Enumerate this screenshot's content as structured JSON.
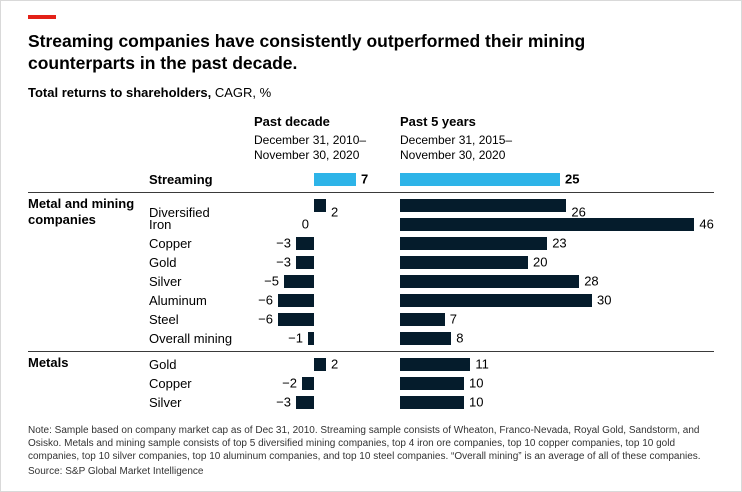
{
  "colors": {
    "accent": "#e32118",
    "highlight": "#2eb4e8",
    "bar": "#051c2c",
    "rule": "#3a3a3a"
  },
  "chart_data": {
    "type": "bar",
    "title": "Streaming companies have consistently outperformed their mining counterparts in the past decade.",
    "subtitle_bold": "Total returns to shareholders,",
    "subtitle_rest": " CAGR, %",
    "columns": [
      {
        "label": "Past decade",
        "sublabel": "December 31, 2010–\nNovember 30, 2020"
      },
      {
        "label": "Past 5 years",
        "sublabel": "December 31, 2015–\nNovember 30, 2020"
      }
    ],
    "series_names": [
      "Past decade",
      "Past 5 years"
    ],
    "groups": [
      {
        "label": "",
        "rows": [
          {
            "name": "Streaming",
            "bold": true,
            "highlight": true,
            "past_decade": 7,
            "past_5_years": 25
          }
        ]
      },
      {
        "label": "Metal and mining companies",
        "rows": [
          {
            "name": "Diversified",
            "past_decade": 2,
            "past_5_years": 26
          },
          {
            "name": "Iron",
            "past_decade": 0,
            "past_5_years": 46
          },
          {
            "name": "Copper",
            "past_decade": -3,
            "past_5_years": 23
          },
          {
            "name": "Gold",
            "past_decade": -3,
            "past_5_years": 20
          },
          {
            "name": "Silver",
            "past_decade": -5,
            "past_5_years": 28
          },
          {
            "name": "Aluminum",
            "past_decade": -6,
            "past_5_years": 30
          },
          {
            "name": "Steel",
            "past_decade": -6,
            "past_5_years": 7
          },
          {
            "name": "Overall mining",
            "past_decade": -1,
            "past_5_years": 8
          }
        ]
      },
      {
        "label": "Metals",
        "rows": [
          {
            "name": "Gold",
            "past_decade": 2,
            "past_5_years": 11
          },
          {
            "name": "Copper",
            "past_decade": -2,
            "past_5_years": 10
          },
          {
            "name": "Silver",
            "past_decade": -3,
            "past_5_years": 10
          }
        ]
      }
    ],
    "note": "Note: Sample based on company market cap as of Dec 31, 2010. Streaming sample consists of Wheaton, Franco-Nevada, Royal Gold, Sandstorm, and Osisko. Metals and mining sample consists of top 5 diversified mining companies, top 4 iron ore companies, top 10 copper companies, top 10 gold companies, top 10 silver companies, top 10 aluminum companies, and top 10 steel companies. “Overall mining” is an average of all of these companies.",
    "source": "Source: S&P Global Market Intelligence"
  }
}
